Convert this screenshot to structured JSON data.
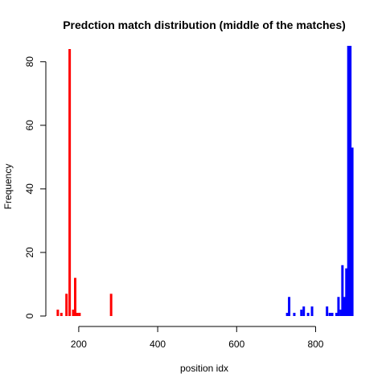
{
  "chart_data": {
    "type": "bar",
    "title": "Predction match distribution (middle of the matches)",
    "xlabel": "position idx",
    "ylabel": "Frequency",
    "xlim": [
      135,
      905
    ],
    "ylim": [
      0,
      85
    ],
    "x_ticks": [
      200,
      400,
      600,
      800
    ],
    "y_ticks": [
      0,
      20,
      40,
      60,
      80
    ],
    "grid": false,
    "legend": "none",
    "series": [
      {
        "color": "#ff0000",
        "bars": [
          {
            "x": 147,
            "y": 2
          },
          {
            "x": 156,
            "y": 1
          },
          {
            "x": 169,
            "y": 7
          },
          {
            "x": 177,
            "y": 84
          },
          {
            "x": 186,
            "y": 2
          },
          {
            "x": 191,
            "y": 12
          },
          {
            "x": 196,
            "y": 1
          },
          {
            "x": 202,
            "y": 1
          },
          {
            "x": 206,
            "y": 0
          },
          {
            "x": 220,
            "y": 0
          },
          {
            "x": 240,
            "y": 0
          },
          {
            "x": 260,
            "y": 0
          },
          {
            "x": 275,
            "y": 0
          },
          {
            "x": 282,
            "y": 7
          }
        ]
      },
      {
        "color": "#0000ff",
        "bars": [
          {
            "x": 728,
            "y": 1
          },
          {
            "x": 733,
            "y": 6
          },
          {
            "x": 746,
            "y": 1
          },
          {
            "x": 764,
            "y": 2
          },
          {
            "x": 770,
            "y": 3
          },
          {
            "x": 781,
            "y": 1
          },
          {
            "x": 791,
            "y": 3
          },
          {
            "x": 829,
            "y": 3
          },
          {
            "x": 836,
            "y": 1
          },
          {
            "x": 842,
            "y": 1
          },
          {
            "x": 853,
            "y": 1
          },
          {
            "x": 858,
            "y": 6
          },
          {
            "x": 864,
            "y": 2
          },
          {
            "x": 868,
            "y": 16
          },
          {
            "x": 873,
            "y": 6
          },
          {
            "x": 878,
            "y": 15
          },
          {
            "x": 883,
            "y": 85
          },
          {
            "x": 888,
            "y": 85
          },
          {
            "x": 893,
            "y": 53
          }
        ]
      }
    ]
  }
}
